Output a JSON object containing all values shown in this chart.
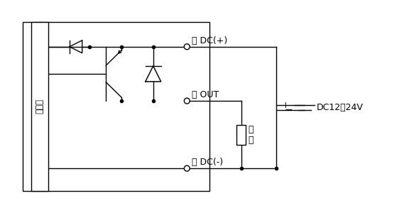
{
  "bg_color": "#ffffff",
  "line_color": "#000000",
  "text_color": "#000000",
  "figsize": [
    5.83,
    3.0
  ],
  "dpi": 100,
  "labels": {
    "dc_plus": "茶 DC(+)",
    "dc_minus": "青 DC(-)",
    "out": "黒 OUT",
    "dc_voltage": "DC12～24V",
    "dc_plus_sign": "+",
    "dc_minus_sign": "−",
    "main_circuit": "主回路",
    "load": "負\n荷"
  }
}
